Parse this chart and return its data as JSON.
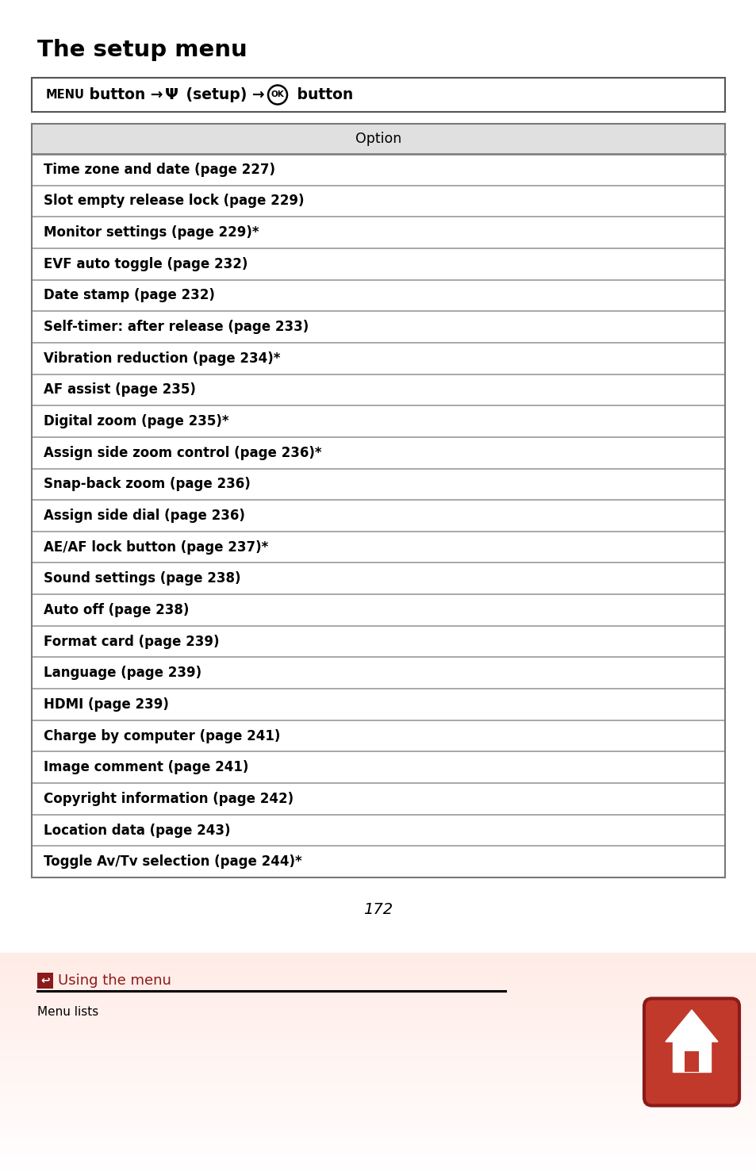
{
  "title": "The setup menu",
  "header": "Option",
  "rows": [
    "Time zone and date (page 227)",
    "Slot empty release lock (page 229)",
    "Monitor settings (page 229)*",
    "EVF auto toggle (page 232)",
    "Date stamp (page 232)",
    "Self-timer: after release (page 233)",
    "Vibration reduction (page 234)*",
    "AF assist (page 235)",
    "Digital zoom (page 235)*",
    "Assign side zoom control (page 236)*",
    "Snap-back zoom (page 236)",
    "Assign side dial (page 236)",
    "AE/AF lock button (page 237)*",
    "Sound settings (page 238)",
    "Auto off (page 238)",
    "Format card (page 239)",
    "Language (page 239)",
    "HDMI (page 239)",
    "Charge by computer (page 241)",
    "Image comment (page 241)",
    "Copyright information (page 242)",
    "Location data (page 243)",
    "Toggle Av/Tv selection (page 244)*"
  ],
  "page_number": "172",
  "footer_link": "Using the menu",
  "footer_sub": "Menu lists",
  "bg_color": "#ffffff",
  "header_bg": "#e0e0e0",
  "row_divider_color": "#999999",
  "border_color": "#666666",
  "title_color": "#000000",
  "row_text_color": "#000000",
  "footer_link_color": "#8b1a1a",
  "page_num_color": "#000000",
  "home_btn_color": "#c0392b",
  "home_btn_dark": "#8b1a1a"
}
